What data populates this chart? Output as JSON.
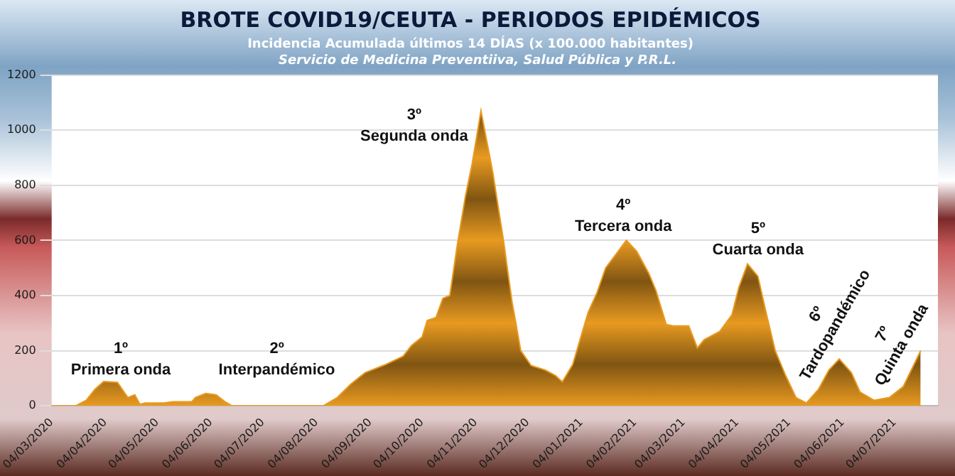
{
  "chart_data": {
    "type": "area",
    "title": "BROTE COVID19/CEUTA - PERIODOS EPIDÉMICOS",
    "subtitle": "Incidencia Acumulada últimos 14 DÍAS (x 100.000 habitantes)",
    "annotations": [
      "Servicio de Medicina Preventiiva, Salud Pública y P.R.L.",
      "1º\nPrimera onda",
      "2º\nInterpandémico",
      "3º\nSegunda onda",
      "4º\nTercera onda",
      "5º\nCuarta onda",
      "6º\nTardopandémico",
      "7º\nQuinta onda"
    ],
    "x": [
      "2020-03-04",
      "2020-03-18",
      "2020-03-24",
      "2020-03-29",
      "2020-04-03",
      "2020-04-11",
      "2020-04-17",
      "2020-04-21",
      "2020-04-24",
      "2020-04-27",
      "2020-05-08",
      "2020-05-13",
      "2020-05-24",
      "2020-05-26",
      "2020-06-01",
      "2020-06-07",
      "2020-06-12",
      "2020-06-16",
      "2020-08-08",
      "2020-08-16",
      "2020-08-24",
      "2020-09-01",
      "2020-09-13",
      "2020-09-23",
      "2020-09-28",
      "2020-10-04",
      "2020-10-07",
      "2020-10-12",
      "2020-10-16",
      "2020-10-20",
      "2020-10-24",
      "2020-10-29",
      "2020-11-02",
      "2020-11-07",
      "2020-11-14",
      "2020-11-20",
      "2020-11-25",
      "2020-11-30",
      "2020-12-06",
      "2020-12-14",
      "2020-12-20",
      "2020-12-24",
      "2020-12-30",
      "2021-01-08",
      "2021-01-13",
      "2021-01-18",
      "2021-01-24",
      "2021-01-30",
      "2021-02-05",
      "2021-02-12",
      "2021-02-16",
      "2021-02-22",
      "2021-02-26",
      "2021-03-07",
      "2021-03-12",
      "2021-03-16",
      "2021-03-25",
      "2021-04-01",
      "2021-04-05",
      "2021-04-10",
      "2021-04-16",
      "2021-04-21",
      "2021-04-26",
      "2021-05-02",
      "2021-05-08",
      "2021-05-14",
      "2021-05-21",
      "2021-05-27",
      "2021-06-02",
      "2021-06-09",
      "2021-06-14",
      "2021-06-22",
      "2021-07-01",
      "2021-07-09",
      "2021-07-19"
    ],
    "values": [
      0,
      0,
      20,
      60,
      88,
      85,
      30,
      40,
      5,
      10,
      10,
      15,
      15,
      30,
      45,
      40,
      15,
      0,
      0,
      30,
      80,
      120,
      150,
      180,
      220,
      250,
      310,
      320,
      390,
      400,
      570,
      760,
      880,
      1070,
      840,
      600,
      375,
      200,
      146,
      130,
      110,
      87,
      150,
      340,
      410,
      500,
      550,
      600,
      560,
      480,
      420,
      295,
      290,
      290,
      210,
      240,
      270,
      330,
      430,
      515,
      470,
      330,
      200,
      110,
      30,
      10,
      60,
      130,
      170,
      120,
      50,
      20,
      30,
      70,
      200
    ],
    "color": "#e89a20",
    "marker": "none",
    "xlim": [
      "2020-03-04",
      "2021-07-29"
    ],
    "xticks": [
      {
        "value": "2020-03-04",
        "label": "04/03/2020"
      },
      {
        "value": "2020-04-04",
        "label": "04/04/2020"
      },
      {
        "value": "2020-05-04",
        "label": "04/05/2020"
      },
      {
        "value": "2020-06-04",
        "label": "04/06/2020"
      },
      {
        "value": "2020-07-04",
        "label": "04/07/2020"
      },
      {
        "value": "2020-08-04",
        "label": "04/08/2020"
      },
      {
        "value": "2020-09-04",
        "label": "04/09/2020"
      },
      {
        "value": "2020-10-04",
        "label": "04/10/2020"
      },
      {
        "value": "2020-11-04",
        "label": "04/11/2020"
      },
      {
        "value": "2020-12-04",
        "label": "04/12/2020"
      },
      {
        "value": "2021-01-04",
        "label": "04/01/2021"
      },
      {
        "value": "2021-02-04",
        "label": "04/02/2021"
      },
      {
        "value": "2021-03-04",
        "label": "04/03/2021"
      },
      {
        "value": "2021-04-04",
        "label": "04/04/2021"
      },
      {
        "value": "2021-05-04",
        "label": "04/05/2021"
      },
      {
        "value": "2021-06-04",
        "label": "04/06/2021"
      },
      {
        "value": "2021-07-04",
        "label": "04/07/2021"
      }
    ],
    "ylim": [
      0,
      1200
    ],
    "yticks": [
      0,
      200,
      400,
      600,
      800,
      1000,
      1200
    ],
    "grid": "y",
    "legend": false
  }
}
